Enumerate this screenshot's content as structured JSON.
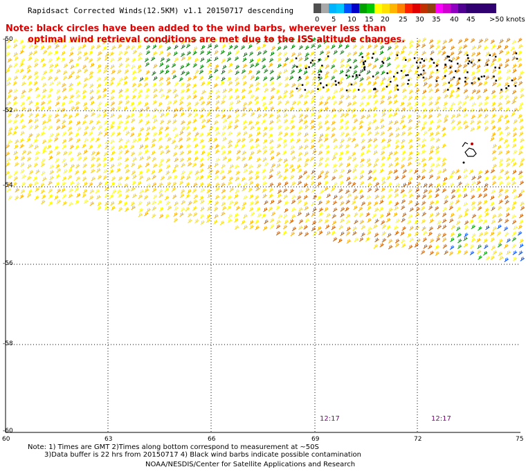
{
  "title": "Rapidsact Corrected Winds(12.5KM) v1.1 20150717 descending",
  "note": {
    "line1": "Note: black circles have been added to the wind barbs, wherever less than",
    "line2": "optimal wind retrieval conditions are met due to the ISS altitude changes."
  },
  "legend": {
    "labels": [
      "0",
      "5",
      "10",
      "15",
      "20",
      "25",
      "30",
      "35",
      "40",
      "45",
      ">50 knots"
    ],
    "colors": [
      "#505050",
      "#a0a0a0",
      "#00c8ff",
      "#0064ff",
      "#008000",
      "#00c000",
      "#ffff00",
      "#ffcc00",
      "#ff8000",
      "#ff0000",
      "#c80000",
      "#a05000",
      "#ff00ff",
      "#a000ff",
      "#400090"
    ]
  },
  "axes": {
    "lat_labels": [
      "-50",
      "-52",
      "-54",
      "-56",
      "-58",
      "-60"
    ],
    "lon_labels": [
      "60",
      "63",
      "66",
      "69",
      "72",
      "75"
    ]
  },
  "times": [
    "12:17",
    "12:17"
  ],
  "footer": {
    "line1": "Note: 1) Times are GMT 2)Times along bottom correspond to measurement at ~50S",
    "line2": "3)Data buffer is 22 hrs from 20150717 4) Black wind barbs indicate possible contamination",
    "line3": "NOAA/NESDIS/Center for Satellite Applications and Research"
  }
}
